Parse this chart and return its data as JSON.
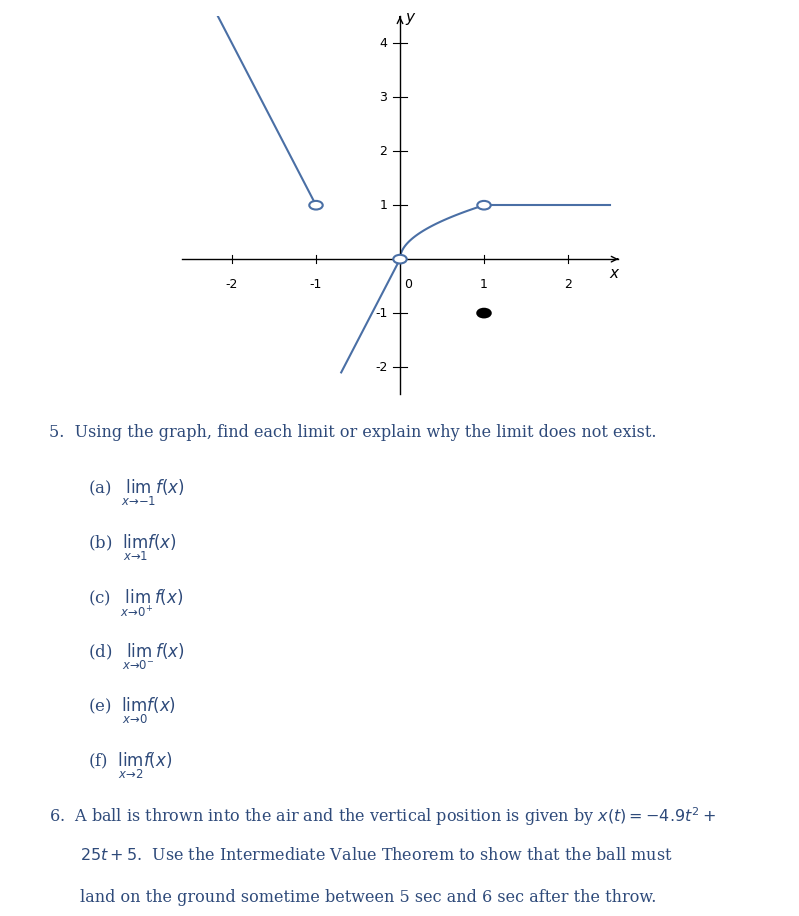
{
  "bg_color": "#ffffff",
  "line_color": "#4a6fa5",
  "text_color": "#2e4a7a",
  "graph_title": "",
  "xlim": [
    -2.6,
    2.6
  ],
  "ylim": [
    -2.5,
    4.5
  ],
  "xticks": [
    -2,
    -1,
    0,
    1,
    2
  ],
  "yticks": [
    -2,
    -1,
    1,
    2,
    3,
    4
  ],
  "open_circles": [
    [
      -1,
      1
    ],
    [
      0,
      0
    ],
    [
      1,
      1
    ]
  ],
  "filled_circles": [
    [
      1,
      -1
    ]
  ],
  "item5_label": "5.  Using the graph, find each limit or explain why the limit does not exist.",
  "item6_label": "6.  A ball is thrown into the air and the vertical position is given by $x(t) = -4.9t^2+$\n    $25t + 5$.  Use the Intermediate Value Theorem to show that the ball must\n    land on the ground sometime between 5 sec and 6 sec after the throw."
}
